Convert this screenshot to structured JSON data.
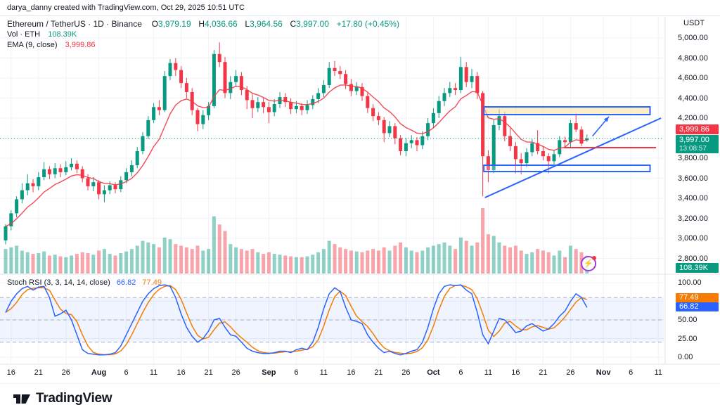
{
  "attribution": "darya_danny created with TradingView.com, Oct 29, 2025 10:51 UTC",
  "legend": {
    "symbol_line": "Ethereum / TetherUS · 1D · Binance",
    "ohlc": {
      "o_label": "O",
      "o": "3,979.19",
      "h_label": "H",
      "h": "4,036.66",
      "l_label": "L",
      "l": "3,964.56",
      "c_label": "C",
      "c": "3,997.00",
      "change": "+17.80 (+0.45%)"
    },
    "vol_label": "Vol · ETH",
    "vol_value": "108.39K",
    "ema_label": "EMA (9, close)",
    "ema_value": "3,999.86"
  },
  "stoch_legend": {
    "label": "Stoch RSI (3, 3, 14, 14, close)",
    "k": "66.82",
    "d": "77.49"
  },
  "price_axis": {
    "currency": "USDT",
    "labels": [
      "5,000.00",
      "4,800.00",
      "4,600.00",
      "4,400.00",
      "4,200.00",
      "4,000.00",
      "3,800.00",
      "3,600.00",
      "3,400.00",
      "3,200.00",
      "3,000.00",
      "2,800.00"
    ],
    "values": [
      5000,
      4800,
      4600,
      4400,
      4200,
      4000,
      3800,
      3600,
      3400,
      3200,
      3000,
      2800
    ]
  },
  "stoch_axis": {
    "labels": [
      "100.00",
      "75.00",
      "50.00",
      "25.00",
      "0.00"
    ],
    "values": [
      100,
      75,
      50,
      25,
      0
    ]
  },
  "badges": {
    "ema": "3,999.86",
    "price": "3,997.00",
    "countdown": "13:08:57",
    "volume": "108.39K",
    "stoch_k": "66.82",
    "stoch_d": "77.49"
  },
  "time_axis": {
    "ticks": [
      {
        "label": "16",
        "day": 1,
        "major": false
      },
      {
        "label": "21",
        "day": 6,
        "major": false
      },
      {
        "label": "26",
        "day": 11,
        "major": false
      },
      {
        "label": "Aug",
        "day": 17,
        "major": true
      },
      {
        "label": "6",
        "day": 22,
        "major": false
      },
      {
        "label": "11",
        "day": 27,
        "major": false
      },
      {
        "label": "16",
        "day": 32,
        "major": false
      },
      {
        "label": "21",
        "day": 37,
        "major": false
      },
      {
        "label": "26",
        "day": 42,
        "major": false
      },
      {
        "label": "Sep",
        "day": 48,
        "major": true
      },
      {
        "label": "6",
        "day": 53,
        "major": false
      },
      {
        "label": "11",
        "day": 58,
        "major": false
      },
      {
        "label": "16",
        "day": 63,
        "major": false
      },
      {
        "label": "21",
        "day": 68,
        "major": false
      },
      {
        "label": "26",
        "day": 73,
        "major": false
      },
      {
        "label": "Oct",
        "day": 78,
        "major": true
      },
      {
        "label": "6",
        "day": 83,
        "major": false
      },
      {
        "label": "11",
        "day": 88,
        "major": false
      },
      {
        "label": "16",
        "day": 93,
        "major": false
      },
      {
        "label": "21",
        "day": 98,
        "major": false
      },
      {
        "label": "26",
        "day": 103,
        "major": false
      },
      {
        "label": "Nov",
        "day": 109,
        "major": true
      },
      {
        "label": "6",
        "day": 114,
        "major": false
      },
      {
        "label": "11",
        "day": 119,
        "major": false
      }
    ]
  },
  "footer": {
    "logo_text": "TradingView"
  },
  "colors": {
    "up": "#089981",
    "down": "#F23645",
    "vol_up": "rgba(8,153,129,0.45)",
    "vol_down": "rgba(242,54,69,0.45)",
    "ema": "#F23645",
    "stoch_k": "#2962FF",
    "stoch_d": "#F57C00",
    "grid": "#F0F3FA",
    "separator": "#E0E3EB",
    "band_fill": "rgba(41,98,255,0.07)",
    "band_line": "#787B86",
    "drawing_blue": "#2962FF",
    "rect_top_fill": "rgba(250,225,150,0.55)",
    "rect_bottom_fill": "rgba(255,255,255,0.25)",
    "current_price_line": "#089981",
    "red_line": "#F23645",
    "flash": "#A03BD6"
  },
  "chart_data": {
    "type": "candlestick",
    "symbol": "Ethereum / TetherUS (Binance)",
    "interval": "1D",
    "start_date": "2025-07-15",
    "current_price": 3997.0,
    "price_range": [
      2800,
      5000
    ],
    "indicators": {
      "ema": "EMA (9, close)",
      "stoch_rsi": "Stoch RSI (3, 3, 14, 14, close)",
      "volume": "Vol · ETH"
    },
    "stoch_band_levels": [
      80,
      50,
      20
    ],
    "candles": [
      [
        2980,
        3140,
        2940,
        3120
      ],
      [
        3120,
        3280,
        3080,
        3250
      ],
      [
        3250,
        3420,
        3210,
        3390
      ],
      [
        3390,
        3550,
        3350,
        3480
      ],
      [
        3480,
        3640,
        3430,
        3550
      ],
      [
        3550,
        3590,
        3460,
        3520
      ],
      [
        3520,
        3660,
        3480,
        3610
      ],
      [
        3610,
        3760,
        3580,
        3690
      ],
      [
        3690,
        3720,
        3590,
        3640
      ],
      [
        3640,
        3750,
        3600,
        3700
      ],
      [
        3700,
        3740,
        3610,
        3660
      ],
      [
        3660,
        3770,
        3630,
        3710
      ],
      [
        3710,
        3800,
        3680,
        3745
      ],
      [
        3745,
        3780,
        3650,
        3690
      ],
      [
        3690,
        3720,
        3560,
        3600
      ],
      [
        3600,
        3640,
        3480,
        3520
      ],
      [
        3520,
        3610,
        3470,
        3560
      ],
      [
        3560,
        3580,
        3390,
        3440
      ],
      [
        3440,
        3530,
        3360,
        3480
      ],
      [
        3480,
        3570,
        3440,
        3530
      ],
      [
        3530,
        3560,
        3450,
        3490
      ],
      [
        3490,
        3620,
        3460,
        3580
      ],
      [
        3580,
        3700,
        3550,
        3660
      ],
      [
        3660,
        3780,
        3620,
        3730
      ],
      [
        3730,
        3910,
        3700,
        3870
      ],
      [
        3870,
        4060,
        3840,
        4020
      ],
      [
        4020,
        4220,
        3990,
        4180
      ],
      [
        4180,
        4350,
        4150,
        4310
      ],
      [
        4310,
        4380,
        4230,
        4280
      ],
      [
        4280,
        4670,
        4260,
        4620
      ],
      [
        4620,
        4790,
        4580,
        4750
      ],
      [
        4750,
        4800,
        4620,
        4680
      ],
      [
        4680,
        4720,
        4500,
        4550
      ],
      [
        4550,
        4600,
        4400,
        4460
      ],
      [
        4460,
        4500,
        4230,
        4280
      ],
      [
        4280,
        4300,
        4070,
        4140
      ],
      [
        4140,
        4280,
        4090,
        4230
      ],
      [
        4230,
        4360,
        4180,
        4320
      ],
      [
        4320,
        4880,
        4300,
        4840
      ],
      [
        4840,
        4956,
        4710,
        4760
      ],
      [
        4760,
        4810,
        4400,
        4450
      ],
      [
        4450,
        4620,
        4390,
        4560
      ],
      [
        4560,
        4680,
        4510,
        4620
      ],
      [
        4620,
        4660,
        4430,
        4480
      ],
      [
        4480,
        4520,
        4290,
        4380
      ],
      [
        4380,
        4440,
        4200,
        4300
      ],
      [
        4300,
        4410,
        4260,
        4360
      ],
      [
        4360,
        4400,
        4250,
        4310
      ],
      [
        4310,
        4360,
        4150,
        4260
      ],
      [
        4260,
        4390,
        4220,
        4340
      ],
      [
        4340,
        4460,
        4300,
        4410
      ],
      [
        4410,
        4450,
        4310,
        4360
      ],
      [
        4360,
        4400,
        4240,
        4290
      ],
      [
        4290,
        4370,
        4250,
        4320
      ],
      [
        4320,
        4350,
        4230,
        4280
      ],
      [
        4280,
        4380,
        4240,
        4330
      ],
      [
        4330,
        4430,
        4290,
        4390
      ],
      [
        4390,
        4500,
        4350,
        4450
      ],
      [
        4450,
        4580,
        4410,
        4530
      ],
      [
        4530,
        4760,
        4500,
        4700
      ],
      [
        4700,
        4770,
        4620,
        4670
      ],
      [
        4670,
        4720,
        4590,
        4640
      ],
      [
        4640,
        4680,
        4490,
        4540
      ],
      [
        4540,
        4590,
        4420,
        4470
      ],
      [
        4470,
        4560,
        4430,
        4510
      ],
      [
        4510,
        4550,
        4370,
        4420
      ],
      [
        4420,
        4450,
        4250,
        4300
      ],
      [
        4300,
        4340,
        4170,
        4220
      ],
      [
        4220,
        4260,
        4130,
        4180
      ],
      [
        4180,
        4210,
        3960,
        4050
      ],
      [
        4050,
        4170,
        4010,
        4120
      ],
      [
        4120,
        4150,
        3940,
        4000
      ],
      [
        4000,
        4030,
        3830,
        3870
      ],
      [
        3870,
        4000,
        3820,
        3950
      ],
      [
        3950,
        4030,
        3900,
        3980
      ],
      [
        3980,
        4010,
        3870,
        3930
      ],
      [
        3930,
        4070,
        3890,
        4020
      ],
      [
        4020,
        4200,
        3980,
        4150
      ],
      [
        4150,
        4300,
        4100,
        4250
      ],
      [
        4250,
        4420,
        4200,
        4370
      ],
      [
        4370,
        4500,
        4320,
        4450
      ],
      [
        4450,
        4560,
        4410,
        4500
      ],
      [
        4500,
        4550,
        4430,
        4480
      ],
      [
        4480,
        4810,
        4450,
        4710
      ],
      [
        4710,
        4760,
        4510,
        4560
      ],
      [
        4560,
        4690,
        4500,
        4620
      ],
      [
        4620,
        4660,
        4390,
        4450
      ],
      [
        4450,
        4470,
        3420,
        3820
      ],
      [
        3820,
        3880,
        3560,
        3680
      ],
      [
        3680,
        4180,
        3650,
        4130
      ],
      [
        4130,
        4290,
        4080,
        4220
      ],
      [
        4220,
        4260,
        3970,
        4020
      ],
      [
        4020,
        4100,
        3870,
        3920
      ],
      [
        3920,
        3960,
        3650,
        3790
      ],
      [
        3790,
        3850,
        3640,
        3750
      ],
      [
        3750,
        3900,
        3710,
        3860
      ],
      [
        3860,
        3990,
        3820,
        3950
      ],
      [
        3950,
        4080,
        3840,
        3870
      ],
      [
        3870,
        3920,
        3780,
        3820
      ],
      [
        3820,
        3850,
        3650,
        3770
      ],
      [
        3770,
        3880,
        3740,
        3840
      ],
      [
        3840,
        4020,
        3810,
        3980
      ],
      [
        3980,
        4015,
        3905,
        3960
      ],
      [
        3960,
        4180,
        3910,
        4150
      ],
      [
        4150,
        4245,
        4060,
        4085
      ],
      [
        4085,
        4120,
        3920,
        3945
      ],
      [
        3979.19,
        4036.66,
        3964.56,
        3997
      ]
    ],
    "volumes_k": [
      150,
      160,
      170,
      140,
      130,
      120,
      125,
      135,
      110,
      115,
      105,
      100,
      110,
      120,
      130,
      125,
      115,
      140,
      150,
      120,
      110,
      125,
      135,
      150,
      170,
      200,
      190,
      180,
      160,
      220,
      210,
      180,
      170,
      160,
      150,
      170,
      140,
      150,
      350,
      300,
      260,
      180,
      160,
      150,
      140,
      150,
      130,
      120,
      130,
      120,
      115,
      110,
      105,
      100,
      100,
      105,
      115,
      130,
      150,
      200,
      180,
      160,
      150,
      140,
      135,
      130,
      140,
      150,
      140,
      160,
      140,
      170,
      190,
      160,
      140,
      130,
      140,
      160,
      170,
      180,
      190,
      170,
      150,
      220,
      200,
      170,
      190,
      400,
      240,
      230,
      190,
      170,
      160,
      170,
      140,
      120,
      130,
      150,
      140,
      130,
      110,
      140,
      100,
      170,
      150,
      130,
      108.39
    ],
    "stoch_k": [
      60,
      75,
      85,
      92,
      95,
      90,
      94,
      95,
      80,
      55,
      58,
      63,
      50,
      30,
      10,
      5,
      4,
      3,
      3,
      4,
      6,
      15,
      30,
      45,
      60,
      75,
      85,
      92,
      96,
      97,
      95,
      80,
      58,
      40,
      28,
      20,
      25,
      35,
      50,
      52,
      40,
      30,
      28,
      20,
      12,
      8,
      6,
      5,
      5,
      6,
      8,
      8,
      6,
      10,
      12,
      10,
      20,
      40,
      65,
      85,
      93,
      88,
      67,
      50,
      48,
      45,
      30,
      20,
      12,
      6,
      8,
      5,
      3,
      5,
      8,
      10,
      20,
      40,
      65,
      85,
      95,
      97,
      96,
      97,
      90,
      85,
      60,
      30,
      18,
      35,
      52,
      50,
      42,
      33,
      35,
      42,
      45,
      40,
      35,
      38,
      45,
      55,
      62,
      75,
      85,
      80,
      66.82
    ],
    "drawings": {
      "rect_top": {
        "day_from": 87.2,
        "day_to": 117.5,
        "price_from": 4235,
        "price_to": 4312
      },
      "rect_bottom": {
        "day_from": 87.2,
        "day_to": 117.5,
        "price_from": 3667,
        "price_to": 3730
      },
      "trendline": {
        "day_from": 87.4,
        "price_from": 3407,
        "day_to": 119.5,
        "price_to": 4200
      },
      "red_hline": {
        "price": 3905,
        "day_from": 101.8,
        "day_to": 118.6
      },
      "arrow": {
        "day_from": 107,
        "price_from": 4020,
        "day_to": 110,
        "price_to": 4215
      }
    }
  }
}
